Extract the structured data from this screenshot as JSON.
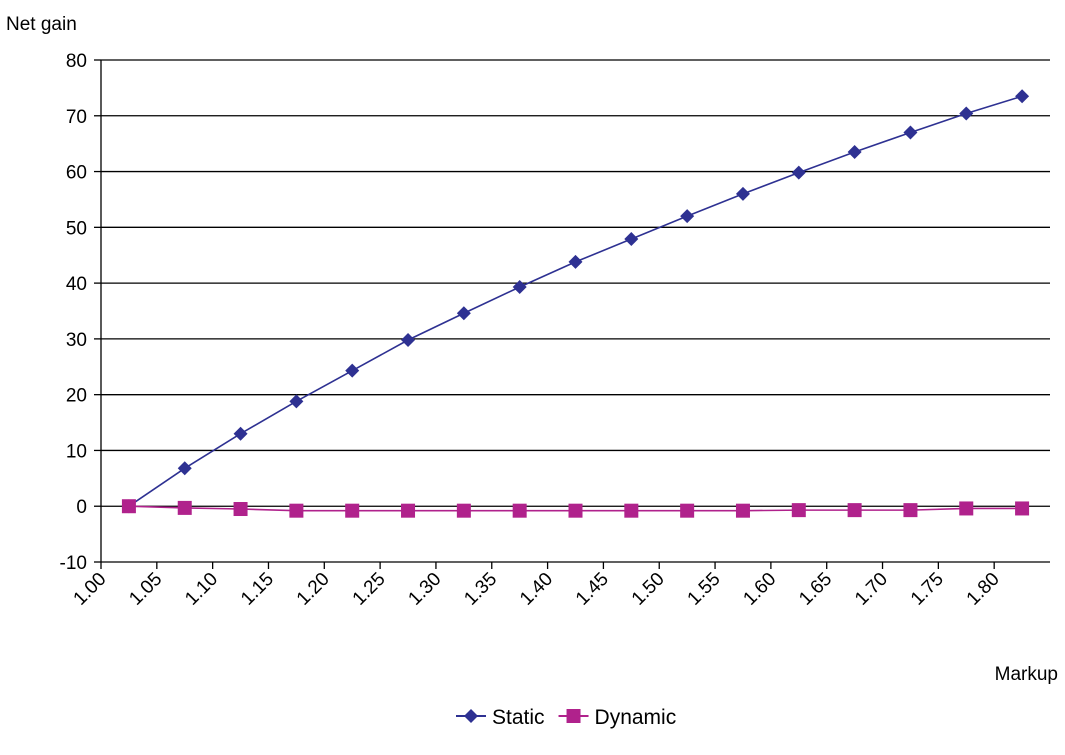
{
  "chart_data": {
    "type": "line",
    "title": "",
    "ylabel": "Net gain",
    "xlabel": "Markup",
    "x_tick_labels": [
      "1.00",
      "1.05",
      "1.10",
      "1.15",
      "1.20",
      "1.25",
      "1.30",
      "1.35",
      "1.40",
      "1.45",
      "1.50",
      "1.55",
      "1.60",
      "1.65",
      "1.70",
      "1.75",
      "1.80"
    ],
    "y_ticks": [
      -10,
      0,
      10,
      20,
      30,
      40,
      50,
      60,
      70,
      80
    ],
    "ylim": [
      -10,
      80
    ],
    "x": [
      1.025,
      1.075,
      1.125,
      1.175,
      1.225,
      1.275,
      1.325,
      1.375,
      1.425,
      1.475,
      1.525,
      1.575,
      1.625,
      1.675,
      1.725,
      1.775,
      1.825
    ],
    "grid": "horizontal",
    "legend_position": "bottom",
    "series": [
      {
        "name": "Static",
        "color": "#2E3192",
        "marker": "diamond",
        "values": [
          0,
          6.8,
          13,
          18.8,
          24.3,
          29.8,
          34.6,
          39.3,
          43.8,
          47.9,
          52,
          56,
          59.8,
          63.5,
          67,
          70.4,
          73.5
        ]
      },
      {
        "name": "Dynamic",
        "color": "#B0228C",
        "marker": "square",
        "values": [
          0,
          -0.3,
          -0.5,
          -0.8,
          -0.8,
          -0.8,
          -0.8,
          -0.8,
          -0.8,
          -0.8,
          -0.8,
          -0.8,
          -0.7,
          -0.7,
          -0.7,
          -0.4,
          -0.4
        ]
      }
    ]
  }
}
